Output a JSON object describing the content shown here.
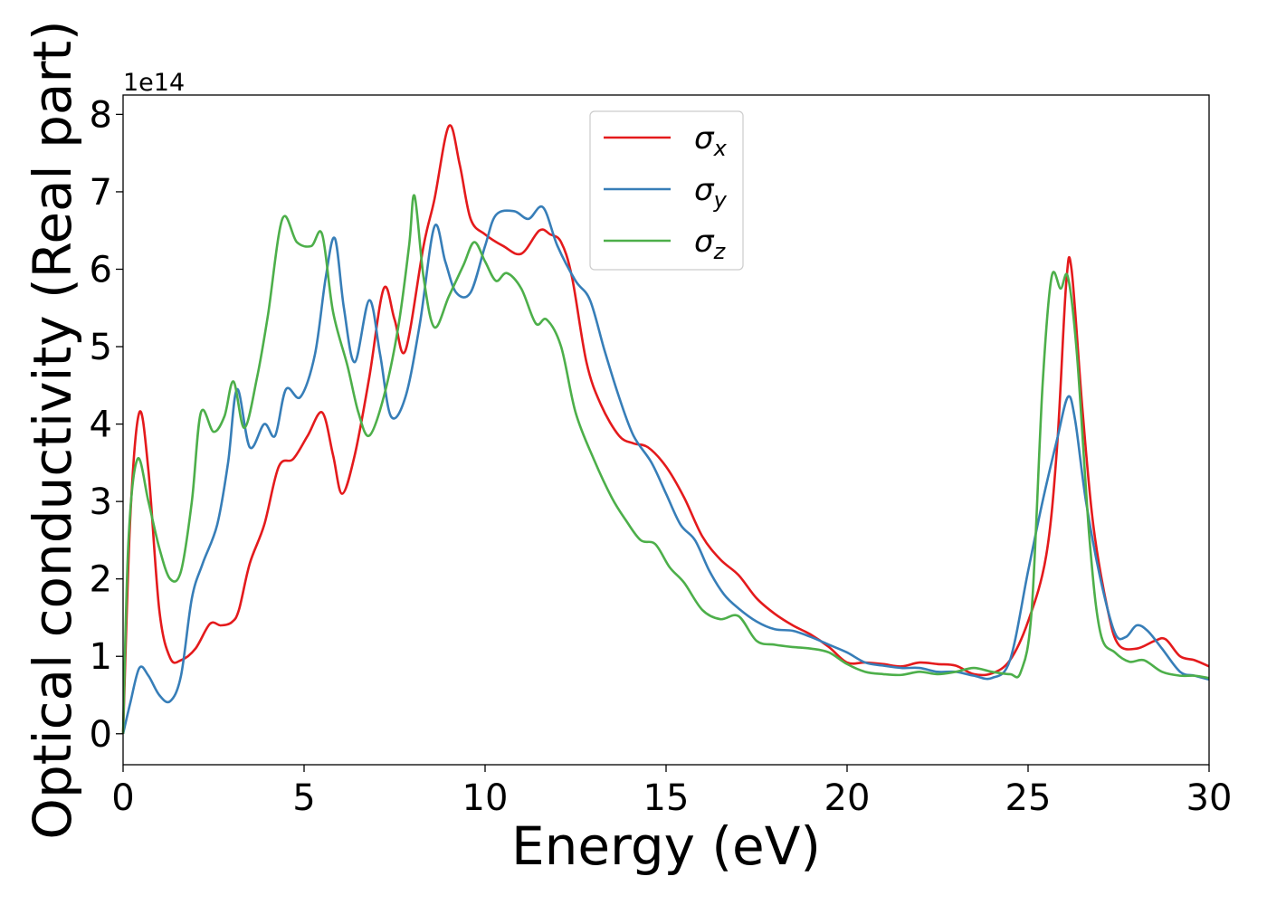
{
  "chart_data": {
    "type": "line",
    "xlabel": "Energy (eV)",
    "ylabel": "Optical conductivity (Real part)",
    "y_offset_label": "1e14",
    "xlim": [
      0,
      30
    ],
    "ylim": [
      -0.4,
      8.25
    ],
    "x_ticks": [
      "0",
      "5",
      "10",
      "15",
      "20",
      "25",
      "30"
    ],
    "y_ticks": [
      "0",
      "1",
      "2",
      "3",
      "4",
      "5",
      "6",
      "7",
      "8"
    ],
    "grid": false,
    "legend_position": "upper-center",
    "series": [
      {
        "name": "σx",
        "name_base": "σ",
        "name_sub": "x",
        "color": "#e41a1c",
        "points": [
          [
            0,
            0
          ],
          [
            0.2,
            2.8
          ],
          [
            0.45,
            4.15
          ],
          [
            0.7,
            3.4
          ],
          [
            1.0,
            1.6
          ],
          [
            1.3,
            0.98
          ],
          [
            1.6,
            0.95
          ],
          [
            2.0,
            1.1
          ],
          [
            2.4,
            1.42
          ],
          [
            2.7,
            1.4
          ],
          [
            3.0,
            1.44
          ],
          [
            3.2,
            1.6
          ],
          [
            3.5,
            2.2
          ],
          [
            3.9,
            2.7
          ],
          [
            4.3,
            3.45
          ],
          [
            4.7,
            3.55
          ],
          [
            5.1,
            3.85
          ],
          [
            5.5,
            4.15
          ],
          [
            5.8,
            3.6
          ],
          [
            6.05,
            3.1
          ],
          [
            6.4,
            3.6
          ],
          [
            6.8,
            4.6
          ],
          [
            7.2,
            5.75
          ],
          [
            7.5,
            5.35
          ],
          [
            7.8,
            4.95
          ],
          [
            8.3,
            6.3
          ],
          [
            8.6,
            6.9
          ],
          [
            9.0,
            7.85
          ],
          [
            9.3,
            7.35
          ],
          [
            9.6,
            6.65
          ],
          [
            10.0,
            6.45
          ],
          [
            10.5,
            6.3
          ],
          [
            11.0,
            6.2
          ],
          [
            11.5,
            6.5
          ],
          [
            11.8,
            6.45
          ],
          [
            12.1,
            6.35
          ],
          [
            12.4,
            5.9
          ],
          [
            12.8,
            4.8
          ],
          [
            13.2,
            4.25
          ],
          [
            13.7,
            3.85
          ],
          [
            14.1,
            3.75
          ],
          [
            14.5,
            3.7
          ],
          [
            15.0,
            3.45
          ],
          [
            15.5,
            3.05
          ],
          [
            16.0,
            2.55
          ],
          [
            16.5,
            2.25
          ],
          [
            17.0,
            2.05
          ],
          [
            17.5,
            1.75
          ],
          [
            18.0,
            1.55
          ],
          [
            18.5,
            1.4
          ],
          [
            19.0,
            1.28
          ],
          [
            19.5,
            1.12
          ],
          [
            20.0,
            0.92
          ],
          [
            20.5,
            0.92
          ],
          [
            21.0,
            0.9
          ],
          [
            21.5,
            0.87
          ],
          [
            22.0,
            0.92
          ],
          [
            22.5,
            0.9
          ],
          [
            23.0,
            0.88
          ],
          [
            23.5,
            0.77
          ],
          [
            24.0,
            0.78
          ],
          [
            24.5,
            0.95
          ],
          [
            25.0,
            1.45
          ],
          [
            25.5,
            2.3
          ],
          [
            25.8,
            3.7
          ],
          [
            26.05,
            5.8
          ],
          [
            26.2,
            6.0
          ],
          [
            26.5,
            4.2
          ],
          [
            26.8,
            2.7
          ],
          [
            27.2,
            1.6
          ],
          [
            27.5,
            1.15
          ],
          [
            28.0,
            1.1
          ],
          [
            28.5,
            1.2
          ],
          [
            28.8,
            1.22
          ],
          [
            29.2,
            1.0
          ],
          [
            29.6,
            0.95
          ],
          [
            30.0,
            0.87
          ]
        ]
      },
      {
        "name": "σy",
        "name_base": "σ",
        "name_sub": "y",
        "color": "#377eb8",
        "points": [
          [
            0,
            0
          ],
          [
            0.2,
            0.4
          ],
          [
            0.45,
            0.85
          ],
          [
            0.7,
            0.75
          ],
          [
            1.0,
            0.5
          ],
          [
            1.3,
            0.42
          ],
          [
            1.6,
            0.75
          ],
          [
            1.9,
            1.75
          ],
          [
            2.2,
            2.2
          ],
          [
            2.6,
            2.7
          ],
          [
            2.9,
            3.5
          ],
          [
            3.15,
            4.45
          ],
          [
            3.5,
            3.7
          ],
          [
            3.9,
            4.0
          ],
          [
            4.2,
            3.85
          ],
          [
            4.5,
            4.45
          ],
          [
            4.9,
            4.35
          ],
          [
            5.3,
            4.9
          ],
          [
            5.6,
            5.9
          ],
          [
            5.85,
            6.4
          ],
          [
            6.1,
            5.5
          ],
          [
            6.4,
            4.8
          ],
          [
            6.8,
            5.6
          ],
          [
            7.1,
            4.9
          ],
          [
            7.4,
            4.1
          ],
          [
            7.8,
            4.35
          ],
          [
            8.2,
            5.3
          ],
          [
            8.6,
            6.55
          ],
          [
            8.9,
            6.1
          ],
          [
            9.2,
            5.7
          ],
          [
            9.6,
            5.7
          ],
          [
            10.0,
            6.3
          ],
          [
            10.3,
            6.7
          ],
          [
            10.8,
            6.75
          ],
          [
            11.2,
            6.65
          ],
          [
            11.6,
            6.8
          ],
          [
            12.0,
            6.3
          ],
          [
            12.5,
            5.85
          ],
          [
            12.9,
            5.6
          ],
          [
            13.3,
            4.95
          ],
          [
            13.7,
            4.35
          ],
          [
            14.1,
            3.85
          ],
          [
            14.6,
            3.5
          ],
          [
            15.0,
            3.1
          ],
          [
            15.4,
            2.7
          ],
          [
            15.8,
            2.5
          ],
          [
            16.2,
            2.1
          ],
          [
            16.6,
            1.8
          ],
          [
            17.0,
            1.62
          ],
          [
            17.5,
            1.45
          ],
          [
            18.0,
            1.35
          ],
          [
            18.5,
            1.33
          ],
          [
            19.0,
            1.25
          ],
          [
            19.5,
            1.15
          ],
          [
            20.0,
            1.05
          ],
          [
            20.5,
            0.92
          ],
          [
            21.0,
            0.88
          ],
          [
            21.5,
            0.85
          ],
          [
            22.0,
            0.85
          ],
          [
            22.5,
            0.8
          ],
          [
            23.0,
            0.8
          ],
          [
            23.5,
            0.75
          ],
          [
            24.0,
            0.72
          ],
          [
            24.5,
            0.95
          ],
          [
            25.0,
            2.1
          ],
          [
            25.4,
            3.0
          ],
          [
            25.8,
            3.8
          ],
          [
            26.1,
            4.35
          ],
          [
            26.3,
            4.05
          ],
          [
            26.6,
            3.0
          ],
          [
            27.0,
            2.0
          ],
          [
            27.4,
            1.3
          ],
          [
            27.7,
            1.25
          ],
          [
            28.0,
            1.4
          ],
          [
            28.3,
            1.33
          ],
          [
            28.7,
            1.1
          ],
          [
            29.2,
            0.8
          ],
          [
            29.6,
            0.75
          ],
          [
            30.0,
            0.7
          ]
        ]
      },
      {
        "name": "σz",
        "name_base": "σ",
        "name_sub": "z",
        "color": "#4daf4a",
        "points": [
          [
            0,
            0
          ],
          [
            0.15,
            2.5
          ],
          [
            0.4,
            3.55
          ],
          [
            0.7,
            3.0
          ],
          [
            1.0,
            2.4
          ],
          [
            1.3,
            2.0
          ],
          [
            1.6,
            2.1
          ],
          [
            1.9,
            3.0
          ],
          [
            2.15,
            4.15
          ],
          [
            2.5,
            3.9
          ],
          [
            2.8,
            4.1
          ],
          [
            3.05,
            4.55
          ],
          [
            3.35,
            3.95
          ],
          [
            3.7,
            4.6
          ],
          [
            4.0,
            5.4
          ],
          [
            4.4,
            6.65
          ],
          [
            4.8,
            6.35
          ],
          [
            5.2,
            6.3
          ],
          [
            5.5,
            6.45
          ],
          [
            5.8,
            5.45
          ],
          [
            6.2,
            4.75
          ],
          [
            6.5,
            4.15
          ],
          [
            6.8,
            3.85
          ],
          [
            7.2,
            4.35
          ],
          [
            7.6,
            5.25
          ],
          [
            7.9,
            6.3
          ],
          [
            8.05,
            6.95
          ],
          [
            8.3,
            5.9
          ],
          [
            8.6,
            5.25
          ],
          [
            9.0,
            5.65
          ],
          [
            9.4,
            6.05
          ],
          [
            9.7,
            6.35
          ],
          [
            10.0,
            6.1
          ],
          [
            10.3,
            5.85
          ],
          [
            10.6,
            5.95
          ],
          [
            11.0,
            5.75
          ],
          [
            11.4,
            5.3
          ],
          [
            11.7,
            5.35
          ],
          [
            12.1,
            5.0
          ],
          [
            12.5,
            4.15
          ],
          [
            13.0,
            3.55
          ],
          [
            13.5,
            3.05
          ],
          [
            13.9,
            2.75
          ],
          [
            14.3,
            2.5
          ],
          [
            14.7,
            2.45
          ],
          [
            15.1,
            2.15
          ],
          [
            15.5,
            1.95
          ],
          [
            16.0,
            1.6
          ],
          [
            16.5,
            1.48
          ],
          [
            17.0,
            1.52
          ],
          [
            17.5,
            1.2
          ],
          [
            18.0,
            1.15
          ],
          [
            18.5,
            1.12
          ],
          [
            19.0,
            1.1
          ],
          [
            19.5,
            1.05
          ],
          [
            20.0,
            0.9
          ],
          [
            20.5,
            0.8
          ],
          [
            21.0,
            0.77
          ],
          [
            21.5,
            0.76
          ],
          [
            22.0,
            0.8
          ],
          [
            22.5,
            0.77
          ],
          [
            23.0,
            0.8
          ],
          [
            23.5,
            0.85
          ],
          [
            24.0,
            0.8
          ],
          [
            24.5,
            0.77
          ],
          [
            24.8,
            0.8
          ],
          [
            25.1,
            1.6
          ],
          [
            25.4,
            4.5
          ],
          [
            25.65,
            5.9
          ],
          [
            25.9,
            5.75
          ],
          [
            26.1,
            5.9
          ],
          [
            26.35,
            4.9
          ],
          [
            26.7,
            2.5
          ],
          [
            27.0,
            1.3
          ],
          [
            27.4,
            1.05
          ],
          [
            27.8,
            0.93
          ],
          [
            28.2,
            0.95
          ],
          [
            28.7,
            0.8
          ],
          [
            29.2,
            0.75
          ],
          [
            29.6,
            0.75
          ],
          [
            30.0,
            0.72
          ]
        ]
      }
    ]
  }
}
